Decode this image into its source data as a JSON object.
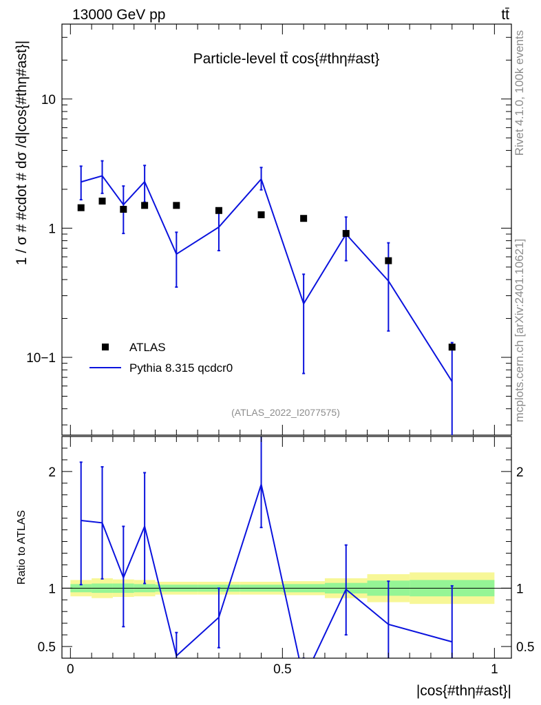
{
  "header": {
    "left": "13000 GeV pp",
    "right": "tt̄"
  },
  "side": {
    "rivet": "Rivet 4.1.0,  100k events",
    "mcplots": "mcplots.cern.ch [arXiv:2401.10621]"
  },
  "chart_data": [
    {
      "type": "scatter",
      "panel": "main",
      "title": "Particle-level tt̄ cos{#thη#ast}",
      "watermark": "(ATLAS_2022_I2077575)",
      "ylabel": "1 / σ # #cdot # dσ /d|cos{#thη#ast}|",
      "yscale": "log",
      "xlim": [
        -0.02,
        1.04
      ],
      "ylim": [
        0.025,
        38
      ],
      "y_ticks": [
        {
          "value": 0.1,
          "label": "10−1"
        },
        {
          "value": 1,
          "label": "1"
        },
        {
          "value": 10,
          "label": "10"
        }
      ],
      "legend": {
        "position": "bottom-left",
        "entries": [
          {
            "label": "ATLAS",
            "style": "square-marker"
          },
          {
            "label": "Pythia 8.315 qcdcr0",
            "style": "line"
          }
        ]
      },
      "series": [
        {
          "name": "ATLAS",
          "style": "markers",
          "color": "#000000",
          "x": [
            0.025,
            0.075,
            0.125,
            0.175,
            0.25,
            0.35,
            0.45,
            0.55,
            0.65,
            0.75,
            0.9
          ],
          "y": [
            1.44,
            1.62,
            1.4,
            1.5,
            1.5,
            1.37,
            1.27,
            1.19,
            0.91,
            0.56,
            0.12
          ]
        },
        {
          "name": "Pythia 8.315 qcdcr0",
          "style": "line",
          "color": "#0a12dd",
          "x": [
            0.025,
            0.075,
            0.125,
            0.175,
            0.25,
            0.35,
            0.45,
            0.55,
            0.65,
            0.75,
            0.9
          ],
          "y": [
            2.28,
            2.54,
            1.52,
            2.29,
            0.63,
            1.02,
            2.4,
            0.26,
            0.9,
            0.39,
            0.065
          ],
          "err_low": [
            0.62,
            0.68,
            0.61,
            0.7,
            0.28,
            0.35,
            0.42,
            0.185,
            0.34,
            0.23,
            0.06
          ],
          "err_high": [
            0.74,
            0.78,
            0.6,
            0.77,
            0.3,
            0.34,
            0.55,
            0.18,
            0.32,
            0.38,
            0.065
          ]
        }
      ]
    },
    {
      "type": "line",
      "panel": "ratio",
      "ylabel": "Ratio to ATLAS",
      "xlabel": "|cos{#thη#ast}|",
      "xlim": [
        -0.02,
        1.04
      ],
      "ylim": [
        0.4,
        2.3
      ],
      "x_ticks": [
        {
          "value": 0,
          "label": "0"
        },
        {
          "value": 0.5,
          "label": "0.5"
        },
        {
          "value": 1,
          "label": "1"
        }
      ],
      "y_ticks": [
        {
          "value": 0.5,
          "label": "0.5"
        },
        {
          "value": 1,
          "label": "1"
        },
        {
          "value": 2,
          "label": "2"
        }
      ],
      "bands": {
        "bins": [
          [
            0,
            0.05
          ],
          [
            0.05,
            0.1
          ],
          [
            0.1,
            0.15
          ],
          [
            0.15,
            0.2
          ],
          [
            0.2,
            0.3
          ],
          [
            0.3,
            0.4
          ],
          [
            0.4,
            0.5
          ],
          [
            0.5,
            0.6
          ],
          [
            0.6,
            0.7
          ],
          [
            0.7,
            0.8
          ],
          [
            0.8,
            1.0
          ]
        ],
        "stat_color": "#95f595",
        "total_color": "#f7f797",
        "stat": [
          0.035,
          0.04,
          0.04,
          0.035,
          0.03,
          0.03,
          0.03,
          0.035,
          0.045,
          0.065,
          0.07
        ],
        "total": [
          0.07,
          0.085,
          0.075,
          0.07,
          0.055,
          0.055,
          0.055,
          0.06,
          0.085,
          0.12,
          0.135
        ]
      },
      "series": [
        {
          "name": "Pythia 8.315 qcdcr0",
          "color": "#0a12dd",
          "x": [
            0.025,
            0.075,
            0.125,
            0.175,
            0.25,
            0.35,
            0.45,
            0.55,
            0.65,
            0.75,
            0.9
          ],
          "y": [
            1.58,
            1.56,
            1.09,
            1.53,
            0.42,
            0.75,
            1.89,
            0.22,
            0.99,
            0.69,
            0.54
          ],
          "err_low": [
            0.55,
            0.48,
            0.42,
            0.49,
            0.19,
            0.26,
            0.37,
            0.16,
            0.39,
            0.41,
            0.49
          ],
          "err_high": [
            0.5,
            0.48,
            0.44,
            0.46,
            0.2,
            0.25,
            0.41,
            0.16,
            0.38,
            0.37,
            0.48
          ]
        }
      ]
    }
  ]
}
